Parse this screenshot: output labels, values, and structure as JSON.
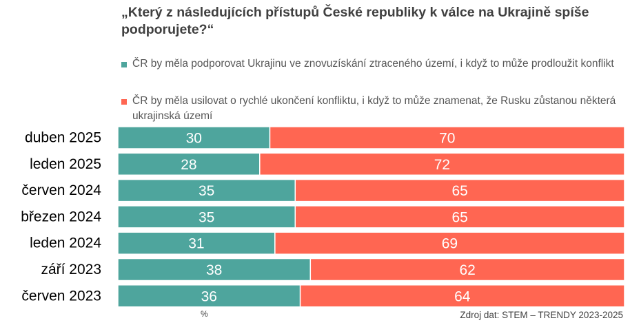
{
  "title": "„Který z následujících přístupů České republiky k válce na Ukrajině spíše podporujete?“",
  "unit_label": "%",
  "source": "Zdroj dat: STEM – TRENDY 2023-2025",
  "colors": {
    "support": "#4ea59d",
    "end": "#ff6652"
  },
  "chart_data": {
    "type": "bar",
    "orientation": "horizontal",
    "stacked": true,
    "title": "„Který z následujících přístupů České republiky k válce na Ukrajině spíše podporujete?“",
    "categories": [
      "duben 2025",
      "leden 2025",
      "červen 2024",
      "březen 2024",
      "leden 2024",
      "září 2023",
      "červen 2023"
    ],
    "series": [
      {
        "name": "ČR by měla podporovat Ukrajinu ve znovuzískání ztraceného území, i když to může prodloužit konflikt",
        "color": "#4ea59d",
        "values": [
          30,
          28,
          35,
          35,
          31,
          38,
          36
        ]
      },
      {
        "name": "ČR by měla usilovat o rychlé ukončení konfliktu, i když to může znamenat, že Rusku zůstanou některá ukrajinská území",
        "color": "#ff6652",
        "values": [
          70,
          72,
          65,
          65,
          69,
          62,
          64
        ]
      }
    ],
    "xlim": [
      0,
      100
    ],
    "unit": "%",
    "legend": "top",
    "grid": false
  }
}
